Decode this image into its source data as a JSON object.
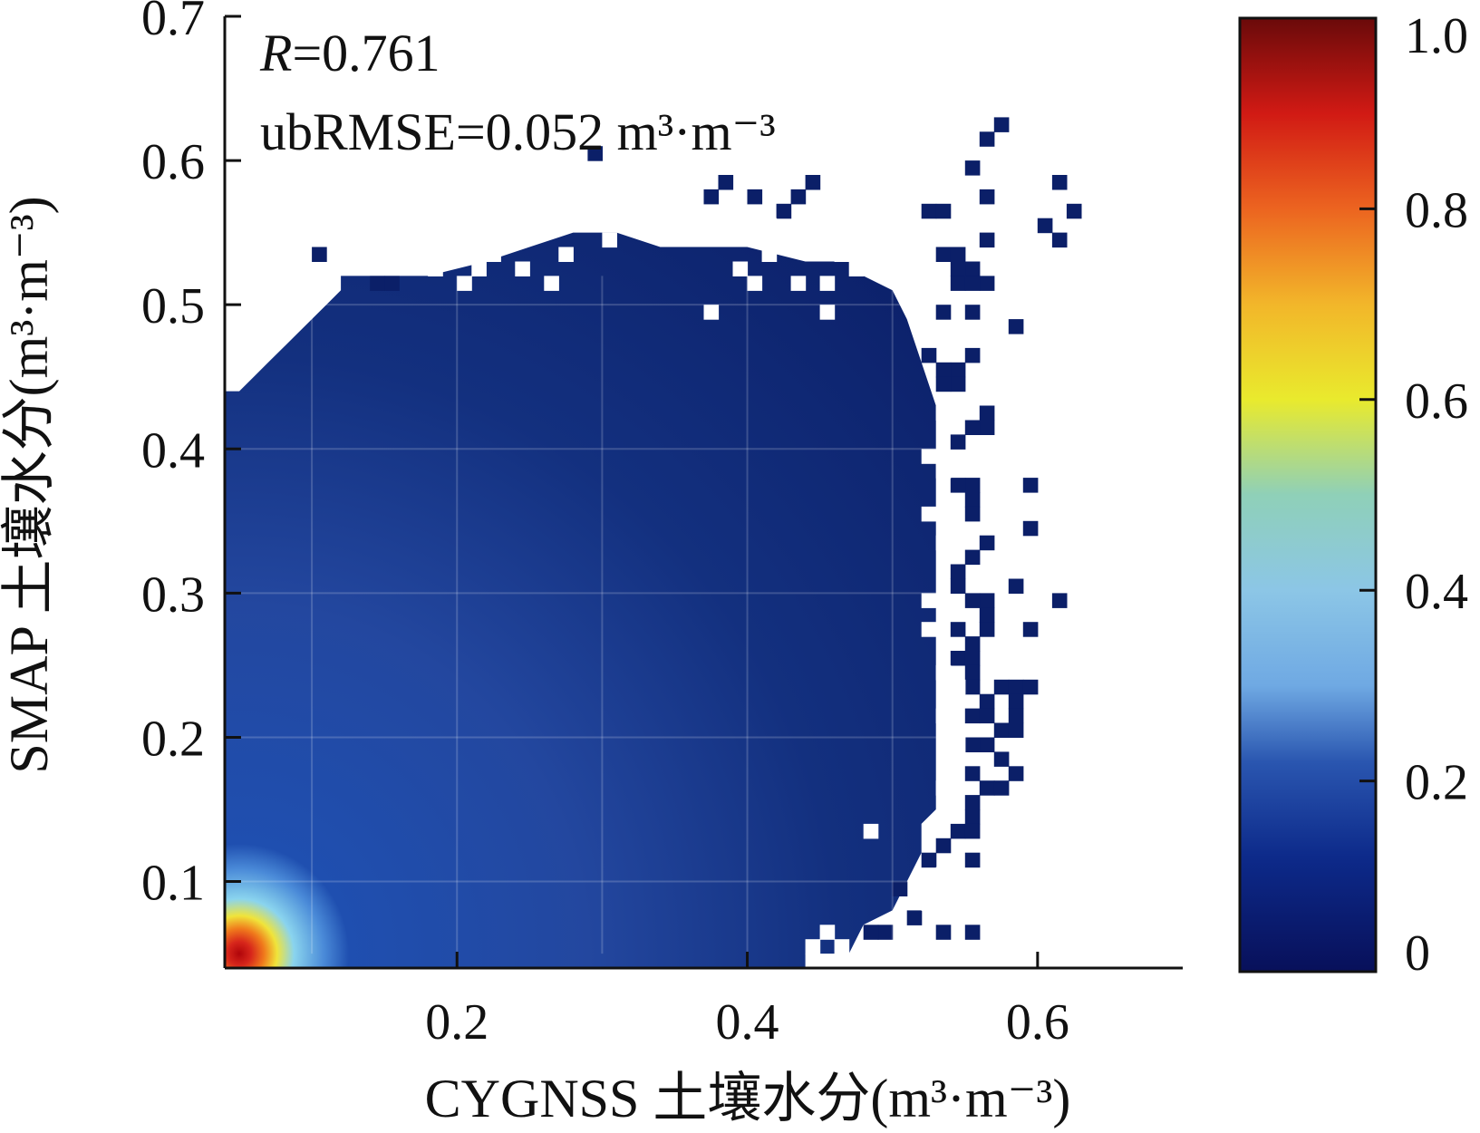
{
  "chart_data": {
    "type": "heatmap",
    "title": "",
    "xlabel": "CYGNSS 土壤水分(m³·m⁻³)",
    "ylabel": "SMAP 土壤水分(m³·m⁻³)",
    "xlim": [
      0.04,
      0.7
    ],
    "ylim": [
      0.04,
      0.7
    ],
    "xticks": [
      0.2,
      0.4,
      0.6
    ],
    "xtick_labels": [
      "0.2",
      "0.4",
      "0.6"
    ],
    "yticks": [
      0.1,
      0.2,
      0.3,
      0.4,
      0.5,
      0.6,
      0.7
    ],
    "ytick_labels": [
      "0.1",
      "0.2",
      "0.3",
      "0.4",
      "0.5",
      "0.6",
      "0.7"
    ],
    "grid": true,
    "cell_size": 0.01,
    "annotations": [
      {
        "label": "R",
        "value": "=0.761"
      },
      {
        "label": "ubRMSE",
        "value": "=0.052",
        "unit": "m³·m⁻³"
      }
    ],
    "colorbar": {
      "range": [
        0,
        1.0
      ],
      "ticks": [
        0,
        0.2,
        0.4,
        0.6,
        0.8,
        1.0
      ],
      "tick_labels": [
        "0",
        "0.2",
        "0.4",
        "0.6",
        "0.8",
        "1.0"
      ],
      "colormap": "jet",
      "colors": [
        "#08105a",
        "#1f4fa8",
        "#7fc8ea",
        "#f2ee2b",
        "#ec5a18",
        "#6a0a0a"
      ]
    },
    "density_peak": [
      0.05,
      0.05
    ],
    "scatter_cells": [
      [
        0.57,
        0.62
      ],
      [
        0.56,
        0.61
      ],
      [
        0.55,
        0.59
      ],
      [
        0.29,
        0.6
      ],
      [
        0.61,
        0.58
      ],
      [
        0.62,
        0.56
      ],
      [
        0.38,
        0.58
      ],
      [
        0.37,
        0.57
      ],
      [
        0.4,
        0.57
      ],
      [
        0.43,
        0.57
      ],
      [
        0.42,
        0.56
      ],
      [
        0.44,
        0.58
      ],
      [
        0.56,
        0.57
      ],
      [
        0.52,
        0.56
      ],
      [
        0.53,
        0.56
      ],
      [
        0.6,
        0.55
      ],
      [
        0.61,
        0.54
      ],
      [
        0.56,
        0.54
      ],
      [
        0.1,
        0.53
      ],
      [
        0.15,
        0.51
      ],
      [
        0.14,
        0.51
      ],
      [
        0.53,
        0.53
      ],
      [
        0.54,
        0.53
      ],
      [
        0.55,
        0.52
      ],
      [
        0.54,
        0.52
      ],
      [
        0.56,
        0.51
      ],
      [
        0.54,
        0.51
      ],
      [
        0.55,
        0.51
      ],
      [
        0.58,
        0.48
      ],
      [
        0.55,
        0.49
      ],
      [
        0.53,
        0.49
      ],
      [
        0.52,
        0.46
      ],
      [
        0.55,
        0.46
      ],
      [
        0.54,
        0.45
      ],
      [
        0.53,
        0.45
      ],
      [
        0.54,
        0.44
      ],
      [
        0.53,
        0.44
      ],
      [
        0.56,
        0.42
      ],
      [
        0.56,
        0.41
      ],
      [
        0.55,
        0.41
      ],
      [
        0.54,
        0.4
      ],
      [
        0.55,
        0.37
      ],
      [
        0.54,
        0.37
      ],
      [
        0.59,
        0.37
      ],
      [
        0.55,
        0.36
      ],
      [
        0.55,
        0.35
      ],
      [
        0.59,
        0.34
      ],
      [
        0.56,
        0.33
      ],
      [
        0.55,
        0.32
      ],
      [
        0.54,
        0.31
      ],
      [
        0.54,
        0.3
      ],
      [
        0.58,
        0.3
      ],
      [
        0.61,
        0.29
      ],
      [
        0.56,
        0.29
      ],
      [
        0.55,
        0.29
      ],
      [
        0.56,
        0.28
      ],
      [
        0.56,
        0.27
      ],
      [
        0.59,
        0.27
      ],
      [
        0.54,
        0.27
      ],
      [
        0.55,
        0.26
      ],
      [
        0.54,
        0.25
      ],
      [
        0.55,
        0.25
      ],
      [
        0.55,
        0.24
      ],
      [
        0.55,
        0.23
      ],
      [
        0.57,
        0.23
      ],
      [
        0.58,
        0.23
      ],
      [
        0.59,
        0.23
      ],
      [
        0.58,
        0.22
      ],
      [
        0.56,
        0.22
      ],
      [
        0.55,
        0.21
      ],
      [
        0.58,
        0.21
      ],
      [
        0.56,
        0.21
      ],
      [
        0.57,
        0.2
      ],
      [
        0.58,
        0.2
      ],
      [
        0.56,
        0.19
      ],
      [
        0.55,
        0.19
      ],
      [
        0.57,
        0.18
      ],
      [
        0.58,
        0.17
      ],
      [
        0.55,
        0.17
      ],
      [
        0.56,
        0.16
      ],
      [
        0.57,
        0.16
      ],
      [
        0.55,
        0.15
      ],
      [
        0.55,
        0.14
      ],
      [
        0.54,
        0.13
      ],
      [
        0.55,
        0.13
      ],
      [
        0.53,
        0.12
      ],
      [
        0.52,
        0.11
      ],
      [
        0.55,
        0.11
      ],
      [
        0.5,
        0.09
      ],
      [
        0.51,
        0.07
      ],
      [
        0.49,
        0.06
      ],
      [
        0.48,
        0.06
      ],
      [
        0.53,
        0.06
      ],
      [
        0.55,
        0.06
      ]
    ],
    "holes": [
      [
        0.48,
        0.13
      ],
      [
        0.52,
        0.29
      ],
      [
        0.52,
        0.27
      ],
      [
        0.52,
        0.35
      ],
      [
        0.37,
        0.49
      ],
      [
        0.45,
        0.49
      ],
      [
        0.41,
        0.53
      ],
      [
        0.43,
        0.51
      ],
      [
        0.45,
        0.51
      ],
      [
        0.39,
        0.52
      ],
      [
        0.4,
        0.51
      ],
      [
        0.47,
        0.52
      ],
      [
        0.5,
        0.53
      ],
      [
        0.46,
        0.53
      ],
      [
        0.44,
        0.54
      ],
      [
        0.47,
        0.54
      ],
      [
        0.4,
        0.55
      ],
      [
        0.41,
        0.55
      ],
      [
        0.3,
        0.54
      ],
      [
        0.27,
        0.53
      ],
      [
        0.24,
        0.52
      ],
      [
        0.21,
        0.52
      ],
      [
        0.22,
        0.53
      ],
      [
        0.2,
        0.51
      ],
      [
        0.26,
        0.51
      ],
      [
        0.18,
        0.52
      ],
      [
        0.44,
        0.05
      ],
      [
        0.46,
        0.05
      ],
      [
        0.45,
        0.06
      ],
      [
        0.52,
        0.08
      ],
      [
        0.53,
        0.09
      ],
      [
        0.53,
        0.1
      ],
      [
        0.53,
        0.16
      ],
      [
        0.54,
        0.19
      ],
      [
        0.53,
        0.21
      ],
      [
        0.54,
        0.23
      ],
      [
        0.53,
        0.24
      ],
      [
        0.53,
        0.33
      ],
      [
        0.52,
        0.39
      ],
      [
        0.53,
        0.38
      ],
      [
        0.53,
        0.42
      ]
    ]
  }
}
